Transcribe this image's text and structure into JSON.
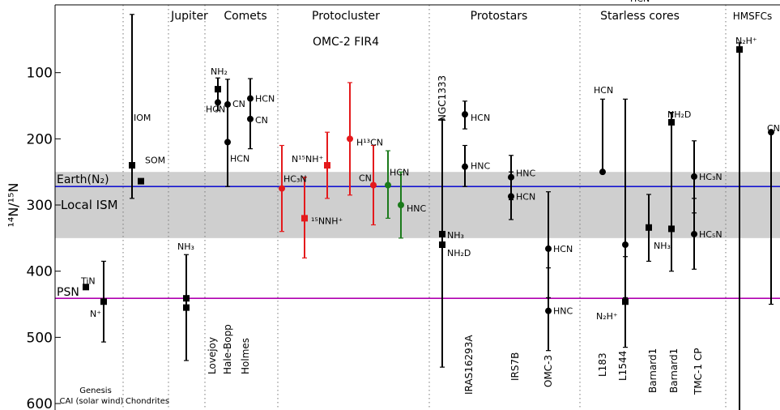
{
  "chart_data": {
    "type": "scatter",
    "title": "",
    "ylabel": "¹⁴N/¹⁵N",
    "xlabel": "",
    "ylim": [
      600,
      0
    ],
    "y_inverted": true,
    "yticks": [
      "100",
      "200",
      "300",
      "400",
      "500",
      "600"
    ],
    "grid": "dotted vertical separators between groups",
    "legend": "none",
    "colors": {
      "default": "#000000",
      "protocluster_red": "#e41a1c",
      "protocluster_green": "#1b7a1b",
      "protocluster_blue": "#2a5fa8",
      "earth_line": "#1515d0",
      "psn_line": "#b000b0",
      "ism_band": "#cfcfcf",
      "local_ism_text": "#ffff00"
    },
    "reference_lines": [
      {
        "name": "Earth(N₂)",
        "value": 272,
        "color": "#1515d0"
      },
      {
        "name": "PSN",
        "value": 441,
        "color": "#b000b0"
      }
    ],
    "reference_band": {
      "name": "Local ISM",
      "low": 250,
      "high": 350,
      "color": "#cfcfcf"
    },
    "groups": [
      {
        "name": "",
        "sublabel": "Genesis\nCAI (solar wind)"
      },
      {
        "name": "",
        "sublabel": "Chondrites"
      },
      {
        "name": "Jupiter",
        "sublabel": ""
      },
      {
        "name": "Comets",
        "sublabel": ""
      },
      {
        "name": "Protocluster",
        "sublabel": "OMC-2 FIR4"
      },
      {
        "name": "Protostars",
        "sublabel": ""
      },
      {
        "name": "Starless cores",
        "sublabel": ""
      },
      {
        "name": "HMSFCs",
        "sublabel": ""
      }
    ],
    "sources": [
      "Lovejoy",
      "Hale-Bopp",
      "Holmes",
      "NGC1333",
      "IRAS16293A",
      "IRS7B",
      "OMC-3",
      "L183",
      "L1544",
      "Barnard1",
      "Barnard1",
      "TMC-1 CP"
    ],
    "points": [
      {
        "group": "Genesis",
        "label": "TiN",
        "y": 424,
        "marker": "square",
        "color": "#000000"
      },
      {
        "group": "Genesis",
        "label": "N⁺",
        "y": 446,
        "ylow": 385,
        "yhigh": 507,
        "marker": "square",
        "color": "#000000"
      },
      {
        "group": "Chondrites",
        "label": "IOM",
        "y": 240,
        "ylow": 12,
        "yhigh": 290,
        "marker": "square",
        "color": "#000000"
      },
      {
        "group": "Chondrites",
        "label": "SOM",
        "y": 264,
        "marker": "square",
        "color": "#000000"
      },
      {
        "group": "Jupiter",
        "label": "NH₃",
        "y": 441,
        "ylow": 375,
        "yhigh": 535,
        "marker": "square",
        "color": "#000000"
      },
      {
        "group": "Jupiter",
        "label": "",
        "y": 455,
        "marker": "square",
        "color": "#000000"
      },
      {
        "group": "Comets",
        "source": "Lovejoy",
        "label": "NH₂",
        "y": 125,
        "ylow": 108,
        "yhigh": 157,
        "marker": "square",
        "color": "#000000"
      },
      {
        "group": "Comets",
        "source": "Lovejoy",
        "label": "HCN",
        "y": 145,
        "marker": "circle",
        "color": "#000000"
      },
      {
        "group": "Comets",
        "source": "Hale-Bopp",
        "label": "CN",
        "y": 148,
        "ylow": 110,
        "yhigh": 272,
        "marker": "circle",
        "color": "#000000"
      },
      {
        "group": "Comets",
        "source": "Hale-Bopp",
        "label": "HCN",
        "y": 205,
        "marker": "circle",
        "color": "#000000"
      },
      {
        "group": "Comets",
        "source": "Holmes",
        "label": "HCN",
        "y": 139,
        "ylow": 109,
        "yhigh": 215,
        "marker": "circle",
        "color": "#000000"
      },
      {
        "group": "Comets",
        "source": "Holmes",
        "label": "CN",
        "y": 170,
        "marker": "circle",
        "color": "#000000"
      },
      {
        "group": "Protocluster",
        "label": "HC₃N",
        "y": 275,
        "ylow": 210,
        "yhigh": 340,
        "marker": "circle",
        "color": "#e41a1c"
      },
      {
        "group": "Protocluster",
        "label": "¹⁵NNH⁺",
        "y": 320,
        "ylow": 258,
        "yhigh": 380,
        "marker": "square",
        "color": "#e41a1c"
      },
      {
        "group": "Protocluster",
        "label": "N¹⁵NH⁺",
        "y": 240,
        "ylow": 190,
        "yhigh": 290,
        "marker": "square",
        "color": "#e41a1c"
      },
      {
        "group": "Protocluster",
        "label": "H¹³CN",
        "y": 200,
        "ylow": 115,
        "yhigh": 285,
        "marker": "circle",
        "color": "#e41a1c"
      },
      {
        "group": "Protocluster",
        "label": "CN",
        "y": 270,
        "ylow": 210,
        "yhigh": 330,
        "marker": "circle",
        "color": "#e41a1c"
      },
      {
        "group": "Protocluster",
        "label": "HCN",
        "y": 270,
        "ylow": 218,
        "yhigh": 320,
        "marker": "circle",
        "color": "#1b7a1b"
      },
      {
        "group": "Protocluster",
        "label": "HNC",
        "y": 300,
        "ylow": 250,
        "yhigh": 350,
        "marker": "circle",
        "color": "#1b7a1b"
      },
      {
        "group": "Protostars",
        "source": "NGC1333",
        "label": "NH₃",
        "y": 344,
        "ylow": 170,
        "yhigh": 545,
        "marker": "square",
        "color": "#000000"
      },
      {
        "group": "Protostars",
        "source": "NGC1333",
        "label": "NH₂D",
        "y": 360,
        "marker": "square",
        "color": "#000000"
      },
      {
        "group": "Protostars",
        "source": "IRAS16293A",
        "label": "HCN",
        "y": 163,
        "ylow": 143,
        "yhigh": 185,
        "marker": "circle",
        "color": "#000000"
      },
      {
        "group": "Protostars",
        "source": "IRAS16293A",
        "label": "HNC",
        "y": 242,
        "ylow": 210,
        "yhigh": 272,
        "marker": "circle",
        "color": "#000000"
      },
      {
        "group": "Protostars",
        "source": "IRS7B",
        "label": "HNC",
        "y": 258,
        "ylow": 225,
        "yhigh": 292,
        "marker": "circle",
        "color": "#000000"
      },
      {
        "group": "Protostars",
        "source": "IRS7B",
        "label": "HCN",
        "y": 287,
        "ylow": 250,
        "yhigh": 322,
        "marker": "circle",
        "color": "#000000"
      },
      {
        "group": "Protostars",
        "source": "OMC-3",
        "label": "HCN",
        "y": 366,
        "ylow": 280,
        "yhigh": 440,
        "marker": "circle",
        "color": "#000000"
      },
      {
        "group": "Protostars",
        "source": "OMC-3",
        "label": "HNC",
        "y": 460,
        "ylow": 395,
        "yhigh": 520,
        "marker": "circle",
        "color": "#000000"
      },
      {
        "group": "Starless cores",
        "source": "L183",
        "label": "HCN",
        "y": 250,
        "ylow": 140,
        "yhigh": 250,
        "marker": "circle",
        "color": "#000000"
      },
      {
        "group": "Starless cores",
        "source": "L1544",
        "label": "HCN",
        "y": 360,
        "ylow": 140,
        "yhigh": 440,
        "marker": "circle",
        "color": "#000000"
      },
      {
        "group": "Starless cores",
        "source": "L1544",
        "label": "N₂H⁺",
        "y": 446,
        "ylow": 378,
        "yhigh": 515,
        "marker": "square",
        "color": "#000000"
      },
      {
        "group": "Starless cores",
        "source": "Barnard1",
        "label": "NH₃",
        "y": 334,
        "ylow": 284,
        "yhigh": 385,
        "marker": "square",
        "color": "#000000"
      },
      {
        "group": "Starless cores",
        "source": "Barnard1",
        "label": "NH₂D",
        "y": 175,
        "ylow": 160,
        "yhigh": 400,
        "marker": "square",
        "color": "#000000"
      },
      {
        "group": "Starless cores",
        "source": "Barnard1",
        "label": "",
        "y": 336,
        "marker": "square",
        "color": "#000000"
      },
      {
        "group": "Starless cores",
        "source": "TMC-1 CP",
        "label": "HC₃N",
        "y": 257,
        "ylow": 203,
        "yhigh": 312,
        "marker": "circle",
        "color": "#000000"
      },
      {
        "group": "Starless cores",
        "source": "TMC-1 CP",
        "label": "HC₅N",
        "y": 344,
        "ylow": 290,
        "yhigh": 397,
        "marker": "circle",
        "color": "#000000"
      },
      {
        "group": "HMSFCs",
        "label": "N₂H⁺",
        "y": 65,
        "ylow": 55,
        "yhigh": 620,
        "marker": "square",
        "color": "#000000"
      },
      {
        "group": "HMSFCs",
        "label": "CN",
        "y": 190,
        "ylow": 190,
        "yhigh": 450,
        "marker": "circle",
        "color": "#000000"
      }
    ]
  }
}
